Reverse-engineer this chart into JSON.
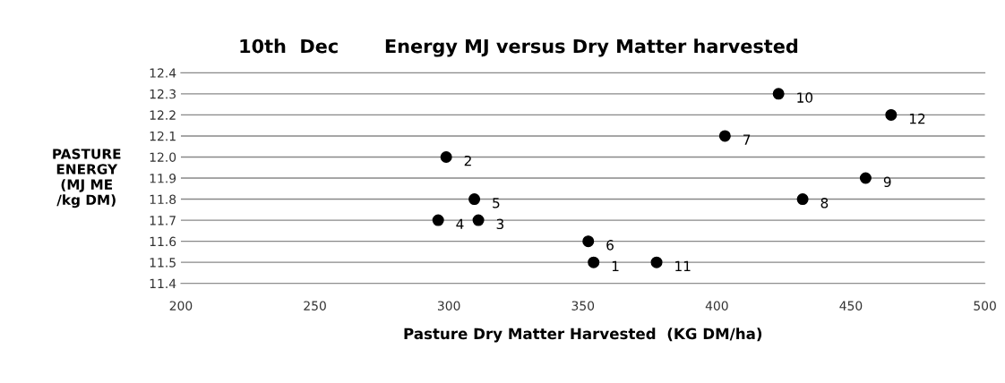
{
  "chart_data": {
    "type": "scatter",
    "title": "10th  Dec       Energy MJ versus Dry Matter harvested",
    "xlabel": "Pasture Dry Matter Harvested  (KG DM/ha)",
    "ylabel": "PASTURE\nENERGY\n(MJ ME\n/kg DM)",
    "x": [
      354,
      299,
      311,
      296,
      309.5,
      352,
      403,
      432,
      455.5,
      423,
      377.5,
      465
    ],
    "series": [
      {
        "color": "#000000",
        "values": [
          11.5,
          12.0,
          11.7,
          11.7,
          11.8,
          11.6,
          12.1,
          11.8,
          11.9,
          12.3,
          11.5,
          12.2
        ]
      }
    ],
    "annotations": [
      {
        "text": "1",
        "x": 354,
        "y": 11.5
      },
      {
        "text": "2",
        "x": 299,
        "y": 12.0
      },
      {
        "text": "3",
        "x": 311,
        "y": 11.7
      },
      {
        "text": "4",
        "x": 296,
        "y": 11.7
      },
      {
        "text": "5",
        "x": 309.5,
        "y": 11.8
      },
      {
        "text": "6",
        "x": 352,
        "y": 11.6
      },
      {
        "text": "7",
        "x": 403,
        "y": 12.1
      },
      {
        "text": "8",
        "x": 432,
        "y": 11.8
      },
      {
        "text": "9",
        "x": 455.5,
        "y": 11.9
      },
      {
        "text": "10",
        "x": 423,
        "y": 12.3
      },
      {
        "text": "11",
        "x": 377.5,
        "y": 11.5
      },
      {
        "text": "12",
        "x": 465,
        "y": 12.2
      }
    ],
    "xlim": [
      200,
      500
    ],
    "xticks": [
      200,
      250,
      300,
      350,
      400,
      450,
      500
    ],
    "ylim": [
      11.4,
      12.4
    ],
    "yticks": [
      {
        "value": 11.4,
        "label": "11.4"
      },
      {
        "value": 11.5,
        "label": "11.5"
      },
      {
        "value": 11.6,
        "label": "11.6"
      },
      {
        "value": 11.7,
        "label": "11.7"
      },
      {
        "value": 11.8,
        "label": "11.8"
      },
      {
        "value": 11.9,
        "label": "11.9"
      },
      {
        "value": 12.0,
        "label": "12.0"
      },
      {
        "value": 12.1,
        "label": "12.1"
      },
      {
        "value": 12.2,
        "label": "12.2"
      },
      {
        "value": 12.3,
        "label": "12.3"
      },
      {
        "value": 12.4,
        "label": "12.4"
      }
    ],
    "grid": "y",
    "marker": "circle"
  }
}
